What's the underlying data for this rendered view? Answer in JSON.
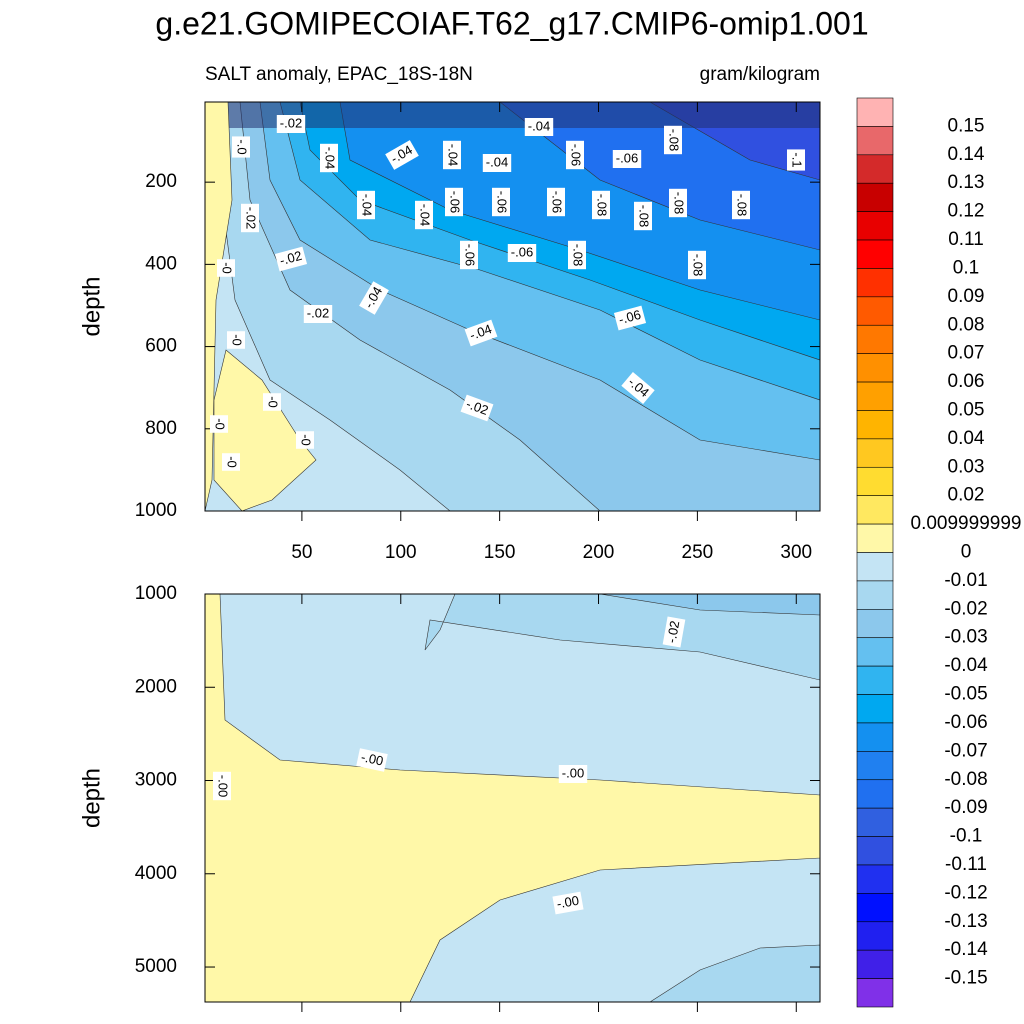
{
  "chart_data": {
    "type": "contour",
    "title": "g.e21.GOMIPECOIAF.T62_g17.CMIP6-omip1.001",
    "subtitle_left": "SALT anomaly, EPAC_18S-18N",
    "subtitle_right": "gram/kilogram",
    "panels": [
      {
        "ylabel": "depth",
        "ylim": [
          5,
          1000
        ],
        "yticks": [
          200,
          400,
          600,
          800,
          1000
        ],
        "xlim": [
          1,
          312
        ],
        "xticks": [
          50,
          100,
          150,
          200,
          250,
          300
        ],
        "xtick_labels": true,
        "contour_labels": [
          "-.02",
          "-.0",
          "-.04",
          "-.04",
          "-.04",
          "-.04",
          "-.04",
          "-.06",
          "-.06",
          "-.08",
          "-.1",
          "-.02",
          "-.04",
          "-.04",
          "-.06",
          "-.06",
          "-.06",
          "-.08",
          "-.08",
          "-.08",
          "-.08",
          "-.02",
          "-.06",
          "-.06",
          "-.08",
          "-.08",
          "-0",
          "-.04",
          "-.02",
          "-.06",
          "-.04",
          "-0",
          "-.04",
          "-.02",
          "-0",
          "-0",
          "-0",
          "-0"
        ]
      },
      {
        "ylabel": "depth",
        "ylim": [
          1000,
          5375
        ],
        "yticks": [
          1000,
          2000,
          3000,
          4000,
          5000
        ],
        "xlim": [
          1,
          312
        ],
        "xticks": [
          50,
          100,
          150,
          200,
          250,
          300
        ],
        "xtick_labels": false,
        "contour_labels": [
          "-.02",
          "-.00",
          "-.00",
          "-.00",
          "-.00"
        ]
      }
    ],
    "colorbar": {
      "labels": [
        0.15,
        0.14,
        0.13,
        0.12,
        0.11,
        0.1,
        0.09,
        0.08,
        0.07,
        0.06,
        0.05,
        0.04,
        0.03,
        0.02,
        0.009999999,
        0,
        -0.01,
        -0.02,
        -0.03,
        -0.04,
        -0.05,
        -0.06,
        -0.07,
        -0.08,
        -0.09,
        -0.1,
        -0.11,
        -0.12,
        -0.13,
        -0.14,
        -0.15
      ],
      "colors": [
        "#ffb3b3",
        "#e8686a",
        "#d42a2a",
        "#c80000",
        "#e80000",
        "#ff0000",
        "#ff3000",
        "#ff5a00",
        "#ff7800",
        "#ff9000",
        "#ffa000",
        "#ffb400",
        "#ffc820",
        "#ffdc30",
        "#ffe860",
        "#fff8a8",
        "#c4e4f4",
        "#a8d8f0",
        "#8cc8ec",
        "#64c0f0",
        "#30b4f0",
        "#00a8f0",
        "#1490f0",
        "#2080f0",
        "#2070f0",
        "#3060e0",
        "#3050e0",
        "#2030f0",
        "#0010ff",
        "#2020f0",
        "#4020e8",
        "#8030e8"
      ]
    }
  }
}
